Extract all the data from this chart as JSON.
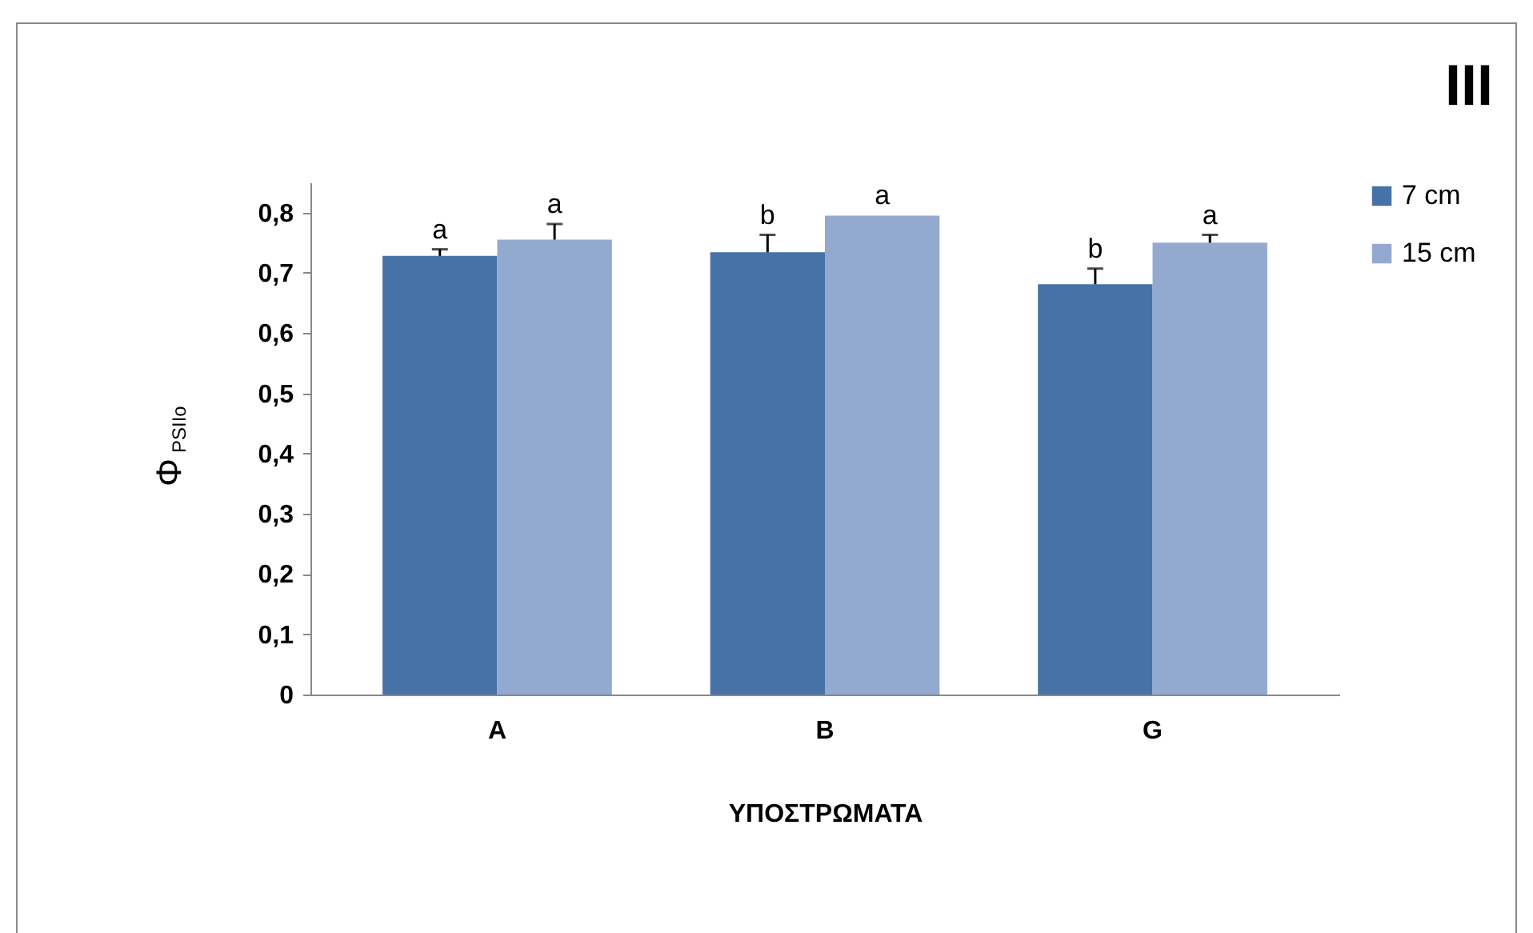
{
  "chart_data": {
    "type": "bar",
    "title": "III",
    "xlabel": "ΥΠΟΣΤΡΩΜΑΤΑ",
    "ylabel": "Φ$_{PSIIo}$",
    "categories": [
      "A",
      "B",
      "G"
    ],
    "series": [
      {
        "name": "7 cm",
        "color": "#4672a8",
        "values": [
          0.728,
          0.734,
          0.681
        ],
        "errors": [
          [
            0.728,
            0.739
          ],
          [
            0.734,
            0.763
          ],
          [
            0.681,
            0.707
          ]
        ],
        "value_labels": [
          "a",
          "b",
          "b"
        ]
      },
      {
        "name": "15 cm",
        "color": "#94a9d0",
        "values": [
          0.755,
          0.795,
          0.75
        ],
        "errors": [
          [
            0.755,
            0.781
          ],
          null,
          [
            0.75,
            0.763
          ]
        ],
        "value_labels": [
          "a",
          "a",
          "a"
        ]
      }
    ],
    "ylim": [
      0,
      0.85
    ],
    "yticks": [
      0,
      {
        "value": 0.1,
        "label": "0,1"
      },
      {
        "value": 0.2,
        "label": "0,2"
      },
      {
        "value": 0.3,
        "label": "0,3"
      },
      {
        "value": 0.4,
        "label": "0,4"
      },
      {
        "value": 0.5,
        "label": "0,5"
      },
      {
        "value": 0.6,
        "label": "0,6"
      },
      {
        "value": 0.7,
        "label": "0,7"
      },
      {
        "value": 0.8,
        "label": "0,8"
      }
    ],
    "grid": false,
    "legend": "right"
  }
}
